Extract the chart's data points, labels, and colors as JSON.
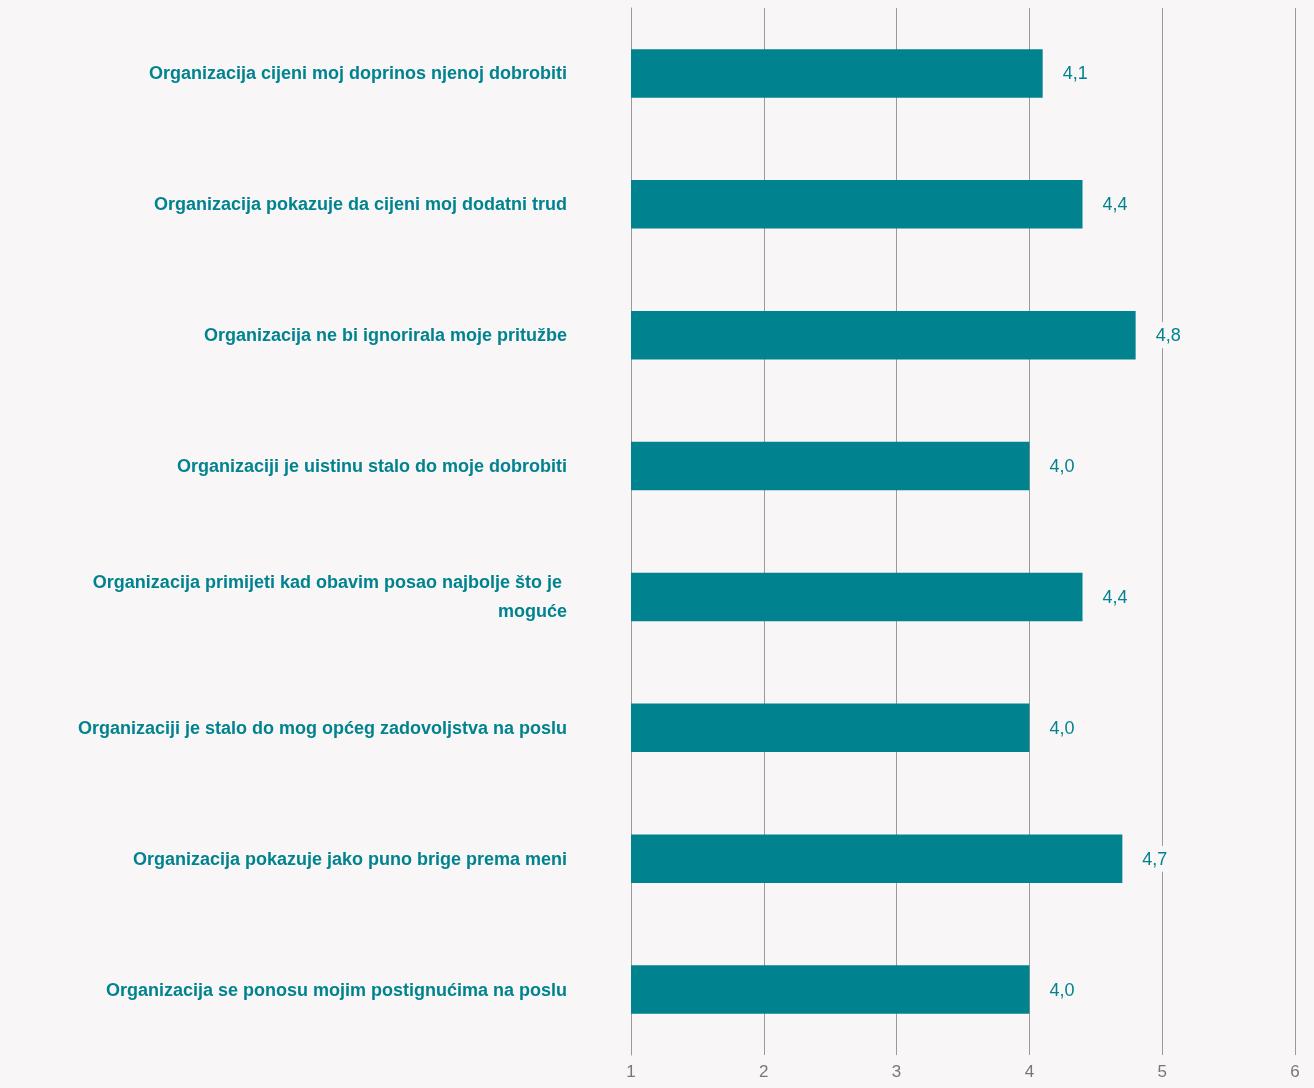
{
  "chart_data": {
    "type": "bar",
    "orientation": "horizontal",
    "categories": [
      "Organizacija cijeni moj doprinos njenoj dobrobiti",
      "Organizacija pokazuje da cijeni moj dodatni trud",
      "Organizacija ne bi ignorirala moje pritužbe",
      "Organizaciji je uistinu stalo do moje dobrobiti",
      "Organizacija primijeti kad obavim posao najbolje što je moguće",
      "Organizaciji je stalo do mog općeg zadovoljstva na poslu",
      "Organizacija pokazuje jako puno brige prema meni",
      "Organizacija se ponosu mojim postignućima na poslu"
    ],
    "values": [
      4.1,
      4.4,
      4.8,
      4.0,
      4.4,
      4.0,
      4.7,
      4.0
    ],
    "value_labels": [
      "4,1",
      "4,4",
      "4,8",
      "4,0",
      "4,4",
      "4,0",
      "4,7",
      "4,0"
    ],
    "color": "#00838f",
    "xlim": [
      1,
      6
    ],
    "xticks": [
      1,
      2,
      3,
      4,
      5,
      6
    ],
    "grid": "x"
  }
}
